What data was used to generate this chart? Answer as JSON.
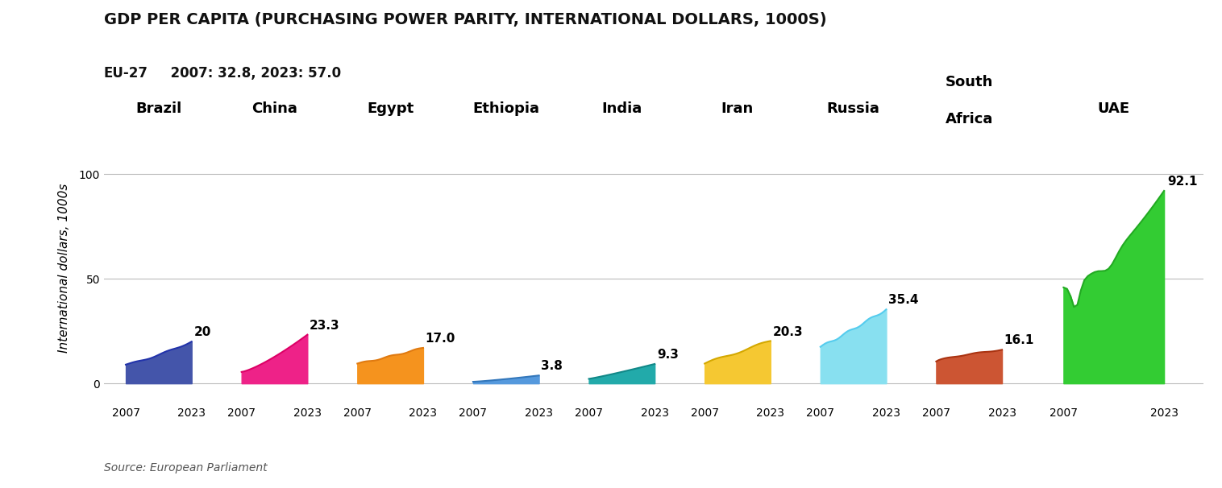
{
  "title": "GDP PER CAPITA (PURCHASING POWER PARITY, INTERNATIONAL DOLLARS, 1000S)",
  "subtitle_bold": "EU-27",
  "subtitle_normal": "  2007: 32.8, 2023: 57.0",
  "source": "Source: European Parliament",
  "ylabel": "International dollars, 1000s",
  "ylim": [
    -8,
    118
  ],
  "yticks": [
    0,
    50,
    100
  ],
  "countries": [
    "Brazil",
    "China",
    "Egypt",
    "Ethiopia",
    "India",
    "Iran",
    "Russia",
    "South\nAfrica",
    "UAE"
  ],
  "values_2007": [
    9.0,
    5.5,
    9.5,
    0.8,
    2.2,
    9.5,
    17.5,
    10.5,
    46.0
  ],
  "values_2023": [
    20.0,
    23.3,
    17.0,
    3.8,
    9.3,
    20.3,
    35.4,
    16.1,
    92.1
  ],
  "labels_2023": [
    "20",
    "23.3",
    "17.0",
    "3.8",
    "9.3",
    "20.3",
    "35.4",
    "16.1",
    "92.1"
  ],
  "fill_colors": [
    "#4455aa",
    "#ee2288",
    "#f5931e",
    "#5599dd",
    "#22aaaa",
    "#f5c832",
    "#88e0f0",
    "#cc5533",
    "#33cc33"
  ],
  "line_colors": [
    "#2233aa",
    "#dd0066",
    "#e07a10",
    "#3377bb",
    "#118888",
    "#d4a800",
    "#55ccee",
    "#aa3311",
    "#22aa22"
  ],
  "background_color": "#ffffff",
  "title_fontsize": 14,
  "subtitle_fontsize": 12,
  "label_fontsize": 11,
  "country_fontsize": 13,
  "tick_fontsize": 10,
  "source_fontsize": 10,
  "panel_widths": [
    1,
    1,
    1,
    1,
    1,
    1,
    1,
    1,
    1.5
  ]
}
